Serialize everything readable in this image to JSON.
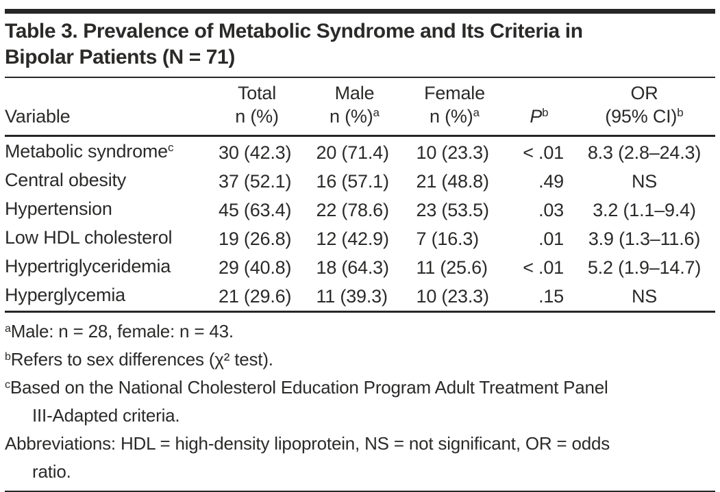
{
  "title": {
    "line1": "Table 3. Prevalence of Metabolic Syndrome and Its Criteria in",
    "line2": "Bipolar Patients (N = 71)"
  },
  "table": {
    "columns": [
      {
        "line1": "",
        "line2": "Variable",
        "sup": ""
      },
      {
        "line1": "Total",
        "line2": "n (%)",
        "sup": ""
      },
      {
        "line1": "Male",
        "line2": "n (%)",
        "sup": "a"
      },
      {
        "line1": "Female",
        "line2": "n (%)",
        "sup": "a"
      },
      {
        "line1": "",
        "line2": "P",
        "sup": "b"
      },
      {
        "line1": "OR",
        "line2": "(95% CI)",
        "sup": "b"
      }
    ],
    "rows": [
      {
        "variable": "Metabolic syndrome",
        "variable_sup": "c",
        "total": "30 (42.3)",
        "male": "20 (71.4)",
        "female": "10 (23.3)",
        "p": "< .01",
        "or": "8.3 (2.8–24.3)"
      },
      {
        "variable": "Central obesity",
        "variable_sup": "",
        "total": "37 (52.1)",
        "male": "16 (57.1)",
        "female": "21 (48.8)",
        "p": ".49",
        "or": "NS"
      },
      {
        "variable": "Hypertension",
        "variable_sup": "",
        "total": "45 (63.4)",
        "male": "22 (78.6)",
        "female": "23 (53.5)",
        "p": ".03",
        "or": "3.2 (1.1–9.4)"
      },
      {
        "variable": "Low HDL cholesterol",
        "variable_sup": "",
        "total": "19 (26.8)",
        "male": "12 (42.9)",
        "female": "7 (16.3)",
        "p": ".01",
        "or": "3.9 (1.3–11.6)"
      },
      {
        "variable": "Hypertriglyceridemia",
        "variable_sup": "",
        "total": "29 (40.8)",
        "male": "18 (64.3)",
        "female": "11 (25.6)",
        "p": "< .01",
        "or": "5.2 (1.9–14.7)"
      },
      {
        "variable": "Hyperglycemia",
        "variable_sup": "",
        "total": "21 (29.6)",
        "male": "11 (39.3)",
        "female": "10 (23.3)",
        "p": ".15",
        "or": "NS"
      }
    ]
  },
  "footnotes": {
    "lines": [
      {
        "sup": "a",
        "text": "Male: n = 28, female: n = 43."
      },
      {
        "sup": "b",
        "text": "Refers to sex differences (χ² test)."
      },
      {
        "sup": "c",
        "text": "Based on the National Cholesterol Education Program Adult Treatment Panel"
      },
      {
        "sup": "",
        "text": "III-Adapted criteria."
      },
      {
        "sup": "",
        "text": "Abbreviations: HDL = high-density lipoprotein, NS = not significant, OR = odds"
      },
      {
        "sup": "",
        "text": "ratio."
      }
    ]
  },
  "colors": {
    "text": "#2b2a29",
    "rule": "#262626",
    "background": "#ffffff"
  }
}
